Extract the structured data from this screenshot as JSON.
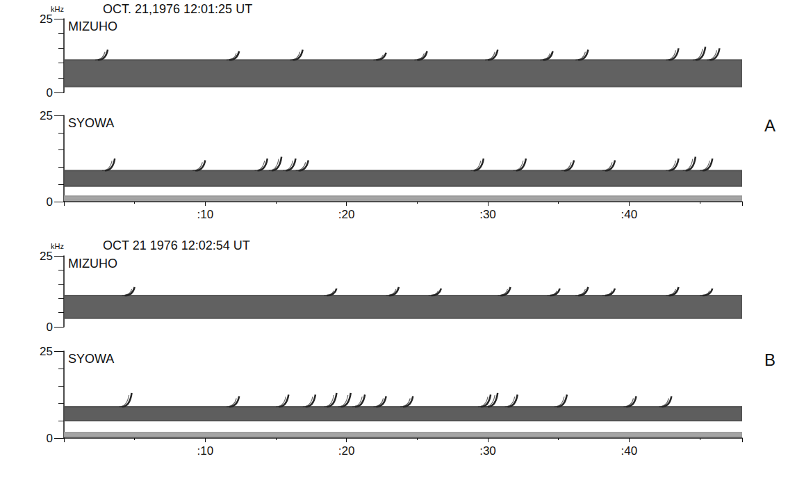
{
  "chart_data": [
    {
      "type": "spectrogram",
      "title": "OCT. 21,1976 12:01:25 UT",
      "panel": "A",
      "y_label": "kHz",
      "xlim": [
        0,
        48
      ],
      "xticks": [
        {
          "value": 10,
          "label": ":10"
        },
        {
          "value": 20,
          "label": ":20"
        },
        {
          "value": 30,
          "label": ":30"
        },
        {
          "value": 40,
          "label": ":40"
        }
      ],
      "ylim": [
        0,
        25
      ],
      "yticks": [
        0,
        25
      ],
      "series": [
        {
          "name": "MIZUHO",
          "color": "#262626",
          "bands": [
            {
              "f": [
                2,
                11
              ],
              "color": "#505050"
            }
          ],
          "elements": [
            [
              2.4,
              3.1,
              11,
              14.5
            ],
            [
              11.7,
              12.4,
              11,
              14
            ],
            [
              16.2,
              16.9,
              11,
              14.5
            ],
            [
              22.1,
              22.8,
              11,
              13.5
            ],
            [
              25,
              25.7,
              11,
              14
            ],
            [
              30,
              30.7,
              11,
              14.5
            ],
            [
              33.9,
              34.6,
              11,
              14
            ],
            [
              36.4,
              37.1,
              11,
              14.5
            ],
            [
              42.8,
              43.5,
              11,
              15
            ],
            [
              44.7,
              45.4,
              11,
              15.5
            ],
            [
              45.7,
              46.4,
              11,
              15
            ]
          ]
        },
        {
          "name": "SYOWA",
          "color": "#262626",
          "bands": [
            {
              "f": [
                4.5,
                9
              ],
              "color": "#4d4d4d"
            },
            {
              "f": [
                0.4,
                1.6
              ],
              "color": "#9a9a9a"
            }
          ],
          "elements": [
            [
              2.9,
              3.6,
              9,
              12.5
            ],
            [
              9.3,
              10,
              9,
              12
            ],
            [
              13.7,
              14.4,
              9,
              12.5
            ],
            [
              14.7,
              15.4,
              9,
              13
            ],
            [
              15.7,
              16.4,
              9,
              12.5
            ],
            [
              16.6,
              17.3,
              9,
              12
            ],
            [
              29,
              29.7,
              9,
              12.5
            ],
            [
              32,
              32.7,
              9,
              12.5
            ],
            [
              35.4,
              36.1,
              9,
              12
            ],
            [
              38.3,
              39,
              9,
              12
            ],
            [
              42.8,
              43.5,
              9,
              12.5
            ],
            [
              44,
              44.7,
              9,
              13
            ],
            [
              45.2,
              45.9,
              9,
              12.5
            ]
          ]
        }
      ]
    },
    {
      "type": "spectrogram",
      "title": "OCT 21 1976 12:02:54 UT",
      "panel": "B",
      "y_label": "kHz",
      "xlim": [
        0,
        48
      ],
      "xticks": [
        {
          "value": 10,
          "label": ":10"
        },
        {
          "value": 20,
          "label": ":20"
        },
        {
          "value": 30,
          "label": ":30"
        },
        {
          "value": 40,
          "label": ":40"
        }
      ],
      "ylim": [
        0,
        25
      ],
      "yticks": [
        0,
        25
      ],
      "series": [
        {
          "name": "MIZUHO",
          "color": "#262626",
          "bands": [
            {
              "f": [
                3,
                11
              ],
              "color": "#505050"
            }
          ],
          "elements": [
            [
              4.3,
              5,
              11,
              14
            ],
            [
              18.6,
              19.3,
              11,
              13.5
            ],
            [
              23,
              23.7,
              11,
              14
            ],
            [
              26,
              26.7,
              11,
              13.5
            ],
            [
              30.9,
              31.6,
              11,
              14
            ],
            [
              34.4,
              35.1,
              11,
              13.5
            ],
            [
              36.4,
              37.1,
              11,
              14
            ],
            [
              38.3,
              39,
              11,
              13.5
            ],
            [
              42.8,
              43.5,
              11,
              14
            ],
            [
              45.2,
              45.9,
              11,
              13.5
            ]
          ]
        },
        {
          "name": "SYOWA",
          "color": "#262626",
          "bands": [
            {
              "f": [
                5,
                9
              ],
              "color": "#4d4d4d"
            },
            {
              "f": [
                0.4,
                1.6
              ],
              "color": "#9a9a9a"
            }
          ],
          "elements": [
            [
              4.1,
              4.8,
              9,
              13
            ],
            [
              11.7,
              12.4,
              9,
              12
            ],
            [
              15.2,
              15.9,
              9,
              12.5
            ],
            [
              17.1,
              17.8,
              9,
              12.5
            ],
            [
              18.6,
              19.3,
              9,
              13
            ],
            [
              19.6,
              20.3,
              9,
              13
            ],
            [
              20.6,
              21.3,
              9,
              12.5
            ],
            [
              22.1,
              22.8,
              9,
              12
            ],
            [
              24,
              24.7,
              9,
              12
            ],
            [
              29.5,
              30.2,
              9,
              12.5
            ],
            [
              30,
              30.7,
              9,
              13
            ],
            [
              31.4,
              32.1,
              9,
              12.5
            ],
            [
              34.9,
              35.6,
              9,
              12.5
            ],
            [
              39.8,
              40.5,
              9,
              12
            ],
            [
              42.3,
              43,
              9,
              12
            ]
          ]
        }
      ]
    }
  ]
}
